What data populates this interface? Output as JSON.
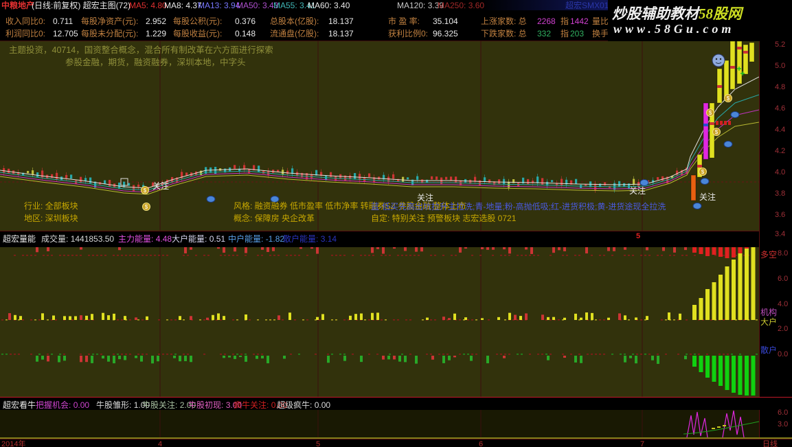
{
  "window": {
    "stock_name": "中粮地产",
    "chart_info": "(日线:前复权) 超宏主图(72)",
    "overlay": "超宏SMX01"
  },
  "ma": [
    "MA5: 4.80",
    "MA8: 4.37",
    "MA13: 3.94",
    "MA50: 3.43",
    "MA55: 3.41",
    "MA60: 3.40",
    "MA120: 3.39",
    "MA250: 3.60"
  ],
  "watermark": {
    "brand_white": "炒股辅助教材",
    "brand_yellow": "58股网",
    "url": "www.58Gu.com"
  },
  "info": {
    "row1": {
      "f1l": "收入同比0:",
      "f1v": "0.711",
      "f2l": "每股净资产(元):",
      "f2v": "2.952",
      "f3l": "每股公积(元):",
      "f3v": "0.376",
      "f4l": "总股本(亿股):",
      "f4v": "18.137",
      "f5l": "市 盈 率:",
      "f5v": "35.104",
      "f6l": "上涨家数: 总",
      "f6v1": "2268",
      "f6m": "指",
      "f6v2": "1442",
      "f7": "量比"
    },
    "row2": {
      "f1l": "利润同比0:",
      "f1v": "12.705",
      "f2l": "每股未分配(元):",
      "f2v": "1.229",
      "f3l": "每股收益(元):",
      "f3v": "0.148",
      "f4l": "流通盘(亿股):",
      "f4v": "18.137",
      "f5l": "获利比例0:",
      "f5v": "96.325",
      "f6l": "下跌家数: 总",
      "f6v1": "332",
      "f6m": "指",
      "f6v2": "203",
      "f7": "换手"
    }
  },
  "main": {
    "topic1": "主题投资，40714，国资整合概念，混合所有制改革在六方面进行探索",
    "topic2": "参股金融，期货，融资融券，深圳本地，中字头",
    "marker": "关注",
    "divider_marker": "5",
    "bottom": {
      "industry": "行业: 全部板块",
      "style": "风格: 融资融券 低市盈率 低市净率 转融券SZ 参股金融 整体上市",
      "legend": "蓝-低买先高出坑拉升主拉洗;青-地量;粉-高抛低吸;红-进货积极;黄-进货途现全拉洗",
      "region": "地区: 深圳板块",
      "concept": "概念: 保障房 央企改革",
      "custom": "自定: 特别关注 预警板块 志宏选股 0721"
    },
    "axis": [
      "5.2",
      "5.0",
      "4.8",
      "4.6",
      "4.4",
      "4.2",
      "4.0",
      "3.8",
      "3.6",
      "3.4"
    ]
  },
  "volume_panel": {
    "name": "超宏量能",
    "f1l": "成交量:",
    "f1v": "1441853.50",
    "f2l": "主力能量:",
    "f2v": "4.48",
    "f3l": "大户能量:",
    "f3v": "0.51",
    "f4l": "中户能量:",
    "f4v": "-1.82",
    "f5l": "散户能量:",
    "f5v": "3.14",
    "label_duokong": "多空",
    "label_jigou": "机构",
    "label_dahu": "大户",
    "label_sanhu": "散户",
    "axis": [
      "8.0",
      "6.0",
      "4.0",
      "2.0",
      "0.0"
    ]
  },
  "bull_panel": {
    "name": "超宏看牛",
    "f1l": "把握机会:",
    "f1v": "0.00",
    "f2l": "牛股雏形:",
    "f2v": "1.00",
    "f3l": "牛股关注:",
    "f3v": "2.00",
    "f4l": "牛股初现:",
    "f4v": "3.00",
    "f5l": "疯牛关注:",
    "f5v": "0.00",
    "f6l": "超级疯牛:",
    "f6v": "0.00",
    "axis": [
      "6.0",
      "3.0"
    ]
  },
  "timeline": {
    "year": "2014年",
    "ticks": [
      "4",
      "5",
      "6",
      "7"
    ],
    "period": "日线"
  },
  "colors": {
    "panel_bg": "#32320c",
    "down_red": "#cc3434",
    "teal": "#28a8a8",
    "yellow": "#e0e020",
    "green": "#28a828",
    "magenta": "#e028e0",
    "orange": "#e86010",
    "gold": "#c8a020",
    "axis_red": "#a03038",
    "accent_blue": "#4a5ae0"
  }
}
